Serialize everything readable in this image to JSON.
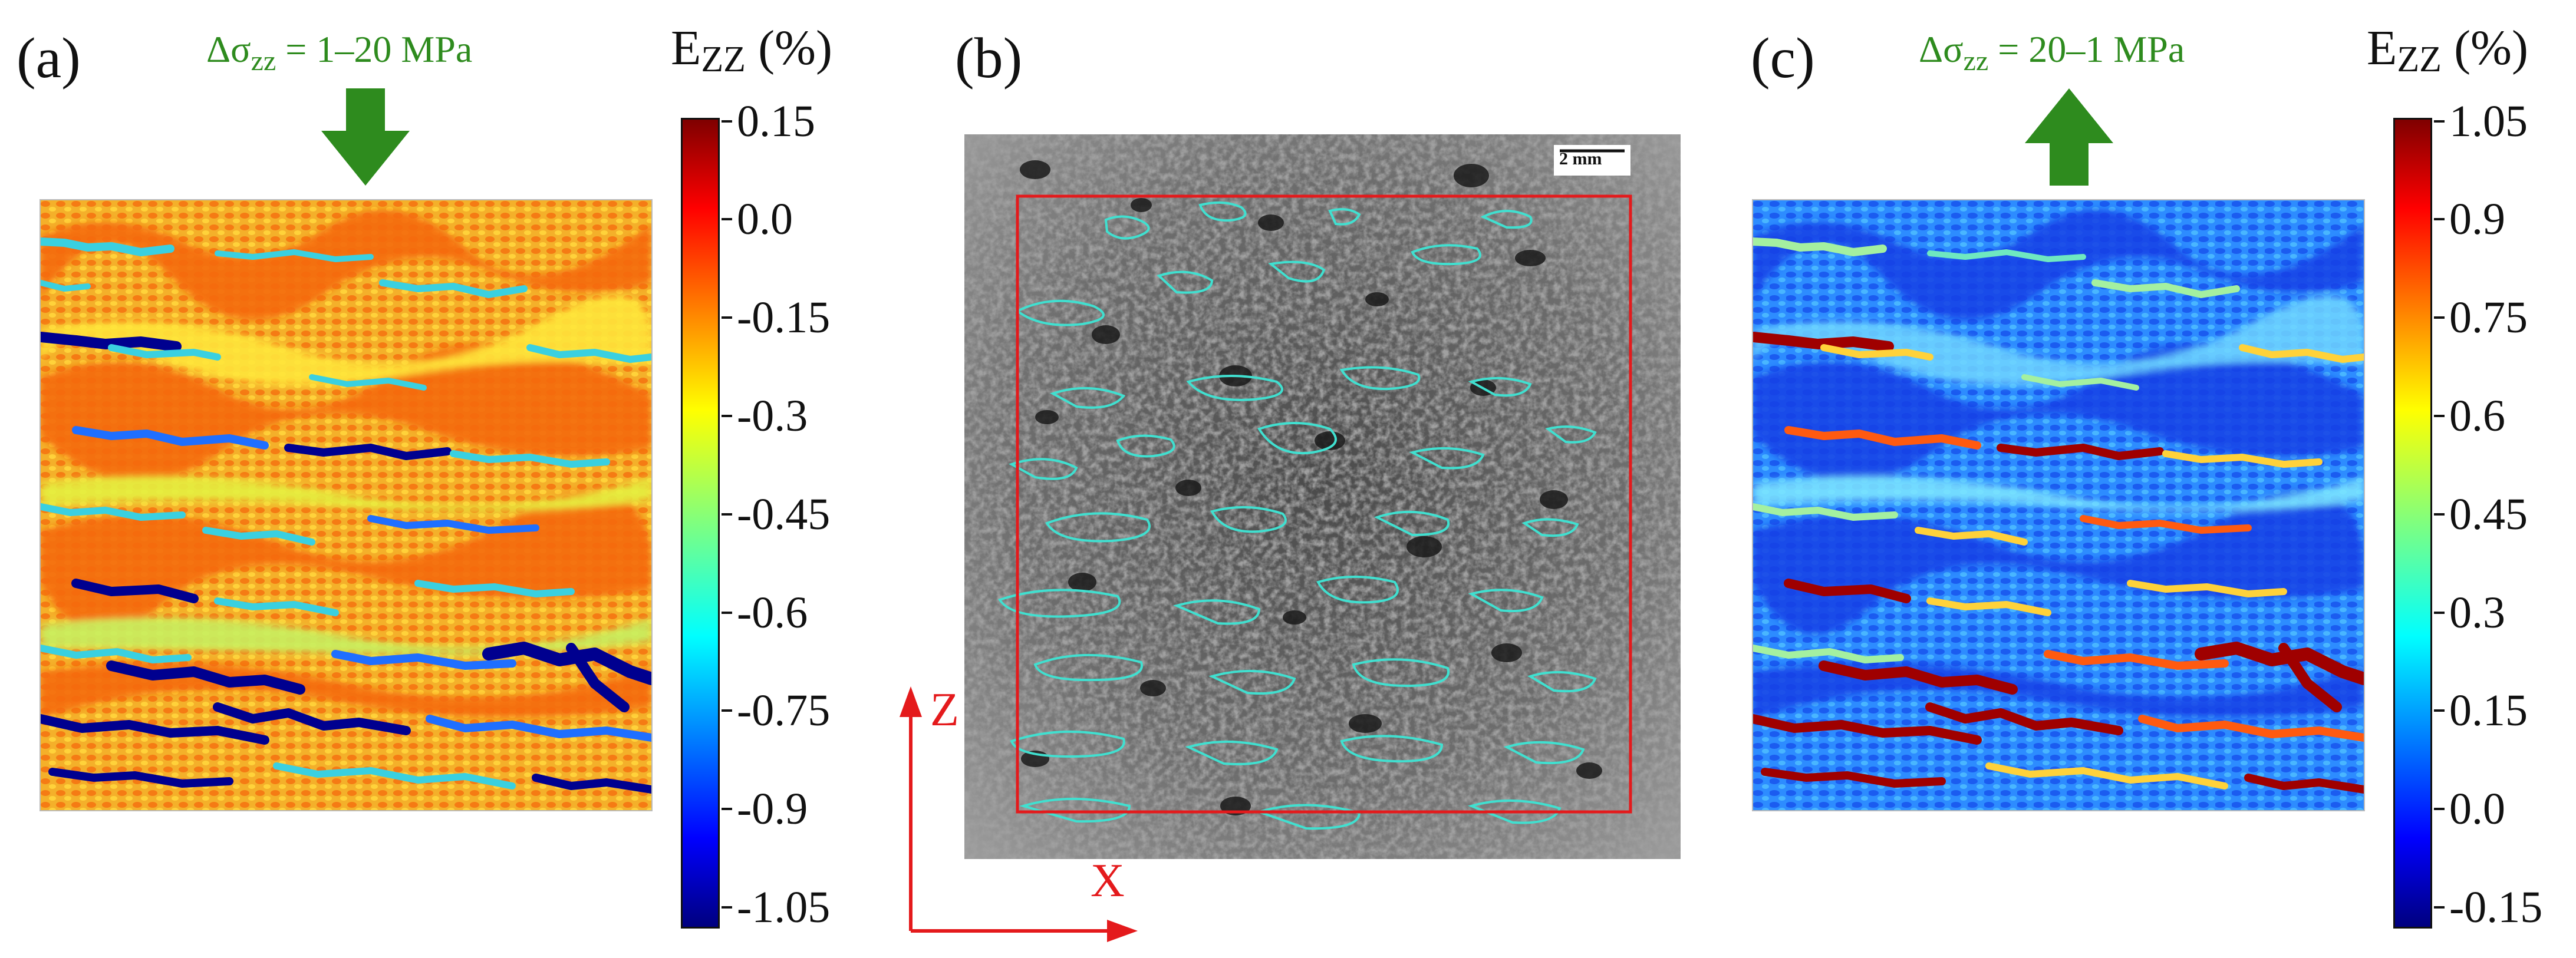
{
  "panels": {
    "a": {
      "letter": "(a)",
      "load_label_prefix": "Δσ",
      "load_label_sub": "zz",
      "load_label_rest": " = 1–20 MPa",
      "arrow_direction": "down",
      "colorbar": {
        "title_main": "E",
        "title_sub": "ZZ",
        "title_rest": " (%)",
        "ticks": [
          "0.15",
          "0.0",
          "-0.15",
          "-0.3",
          "-0.45",
          "-0.6",
          "-0.75",
          "-0.9",
          "-1.05"
        ]
      }
    },
    "b": {
      "letter": "(b)",
      "scale_bar": "2 mm",
      "axis_vertical": "Z",
      "axis_horizontal": "X"
    },
    "c": {
      "letter": "(c)",
      "load_label_prefix": "Δσ",
      "load_label_sub": "zz",
      "load_label_rest": " = 20–1 MPa",
      "arrow_direction": "up",
      "colorbar": {
        "title_main": "E",
        "title_sub": "ZZ",
        "title_rest": " (%)",
        "ticks": [
          "1.05",
          "0.9",
          "0.75",
          "0.6",
          "0.45",
          "0.3",
          "0.15",
          "0.0",
          "-0.15"
        ]
      }
    }
  },
  "colors": {
    "load_green": "#2e8b1e",
    "axis_red": "#e41a1c",
    "contour_cyan": "#40e0d0",
    "roi_red": "#e41a1c"
  }
}
